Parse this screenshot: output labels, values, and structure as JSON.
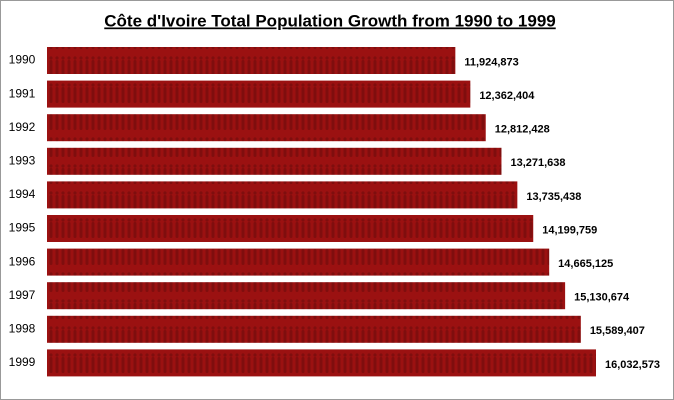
{
  "chart_data": {
    "type": "bar",
    "orientation": "horizontal",
    "title": "Côte d'Ivoire Total Population Growth from 1990 to 1999",
    "categories": [
      "1990",
      "1991",
      "1992",
      "1993",
      "1994",
      "1995",
      "1996",
      "1997",
      "1998",
      "1999"
    ],
    "values": [
      11924873,
      12362404,
      12812428,
      13271638,
      13735438,
      14199759,
      14665125,
      15130674,
      15589407,
      16032573
    ],
    "value_labels": [
      "11,924,873",
      "12,362,404",
      "12,812,428",
      "13,271,638",
      "13,735,438",
      "14,199,759",
      "14,665,125",
      "15,130,674",
      "15,589,407",
      "16,032,573"
    ],
    "color": "#9b1111"
  }
}
